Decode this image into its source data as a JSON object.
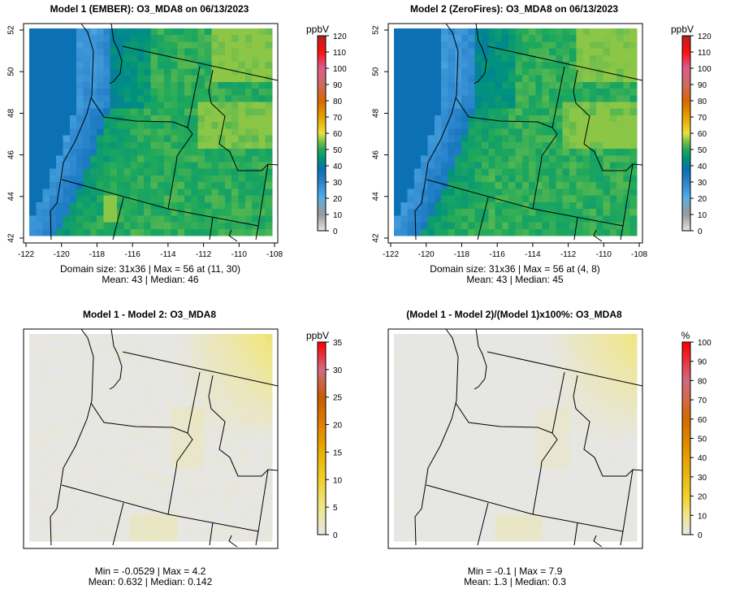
{
  "chart_data": [
    {
      "type": "heatmap",
      "title": "Model 1 (EMBER): O3_MDA8 on 06/13/2023",
      "units": "ppbV",
      "colorbar_ticks": [
        0,
        10,
        20,
        30,
        40,
        50,
        60,
        70,
        80,
        90,
        100,
        110,
        120
      ],
      "colorbar_range": [
        0,
        120
      ],
      "xticks": [
        -122,
        -120,
        -118,
        -116,
        -114,
        -112,
        -110,
        -108
      ],
      "yticks": [
        42,
        44,
        46,
        48,
        50,
        52
      ],
      "stats_line1": "Domain size: 31x36 | Max = 56 at (11, 30)",
      "stats_line2": "Mean: 43 |  Median: 46",
      "grid": {
        "rows": 31,
        "cols": 36
      },
      "max": 56,
      "mean": 43,
      "median": 46
    },
    {
      "type": "heatmap",
      "title": "Model 2 (ZeroFires): O3_MDA8 on 06/13/2023",
      "units": "ppbV",
      "colorbar_ticks": [
        0,
        10,
        20,
        30,
        40,
        50,
        60,
        70,
        80,
        90,
        100,
        110,
        120
      ],
      "colorbar_range": [
        0,
        120
      ],
      "xticks": [
        -122,
        -120,
        -118,
        -116,
        -114,
        -112,
        -110,
        -108
      ],
      "yticks": [
        42,
        44,
        46,
        48,
        50,
        52
      ],
      "stats_line1": "Domain size: 31x36 | Max = 56 at (4, 8)",
      "stats_line2": "Mean: 43 |  Median: 45",
      "grid": {
        "rows": 31,
        "cols": 36
      },
      "max": 56,
      "mean": 43,
      "median": 45
    },
    {
      "type": "heatmap",
      "title": "Model 1 - Model 2: O3_MDA8",
      "units": "ppbV",
      "colorbar_ticks": [
        0,
        5,
        10,
        15,
        20,
        25,
        30,
        35
      ],
      "colorbar_range": [
        0,
        35
      ],
      "xticks": [],
      "yticks": [],
      "stats_line1": "Min = -0.0529 | Max = 4.2",
      "stats_line2": "Mean: 0.632 |  Median: 0.142",
      "min": -0.0529,
      "max": 4.2,
      "mean": 0.632,
      "median": 0.142
    },
    {
      "type": "heatmap",
      "title": "(Model 1 - Model 2)/(Model 1)x100%: O3_MDA8",
      "units": "%",
      "colorbar_ticks": [
        0,
        10,
        20,
        30,
        40,
        50,
        60,
        70,
        80,
        90,
        100
      ],
      "colorbar_range": [
        0,
        100
      ],
      "xticks": [],
      "yticks": [],
      "stats_line1": "Min = -0.1 | Max = 7.9",
      "stats_line2": "Mean: 1.3 |  Median: 0.3",
      "min": -0.1,
      "max": 7.9,
      "mean": 1.3,
      "median": 0.3
    }
  ]
}
